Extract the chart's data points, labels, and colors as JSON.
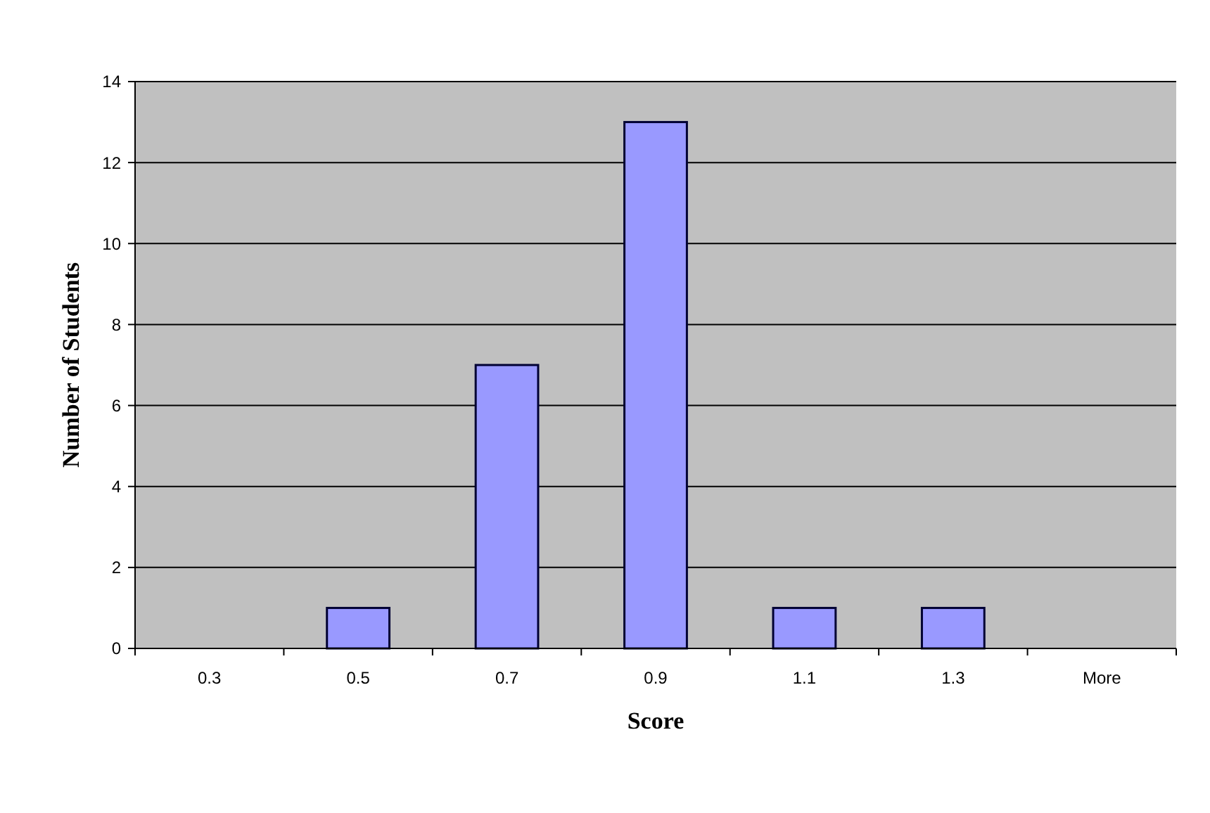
{
  "chart_data": {
    "type": "bar",
    "xlabel": "Score",
    "ylabel": "Number of Students",
    "categories": [
      "0.3",
      "0.5",
      "0.7",
      "0.9",
      "1.1",
      "1.3",
      "More"
    ],
    "values": [
      0,
      1,
      7,
      13,
      1,
      1,
      0
    ],
    "color": "#9999ff",
    "ylim": [
      0,
      14
    ],
    "yticks": [
      0,
      2,
      4,
      6,
      8,
      10,
      12,
      14
    ],
    "grid": "y"
  }
}
